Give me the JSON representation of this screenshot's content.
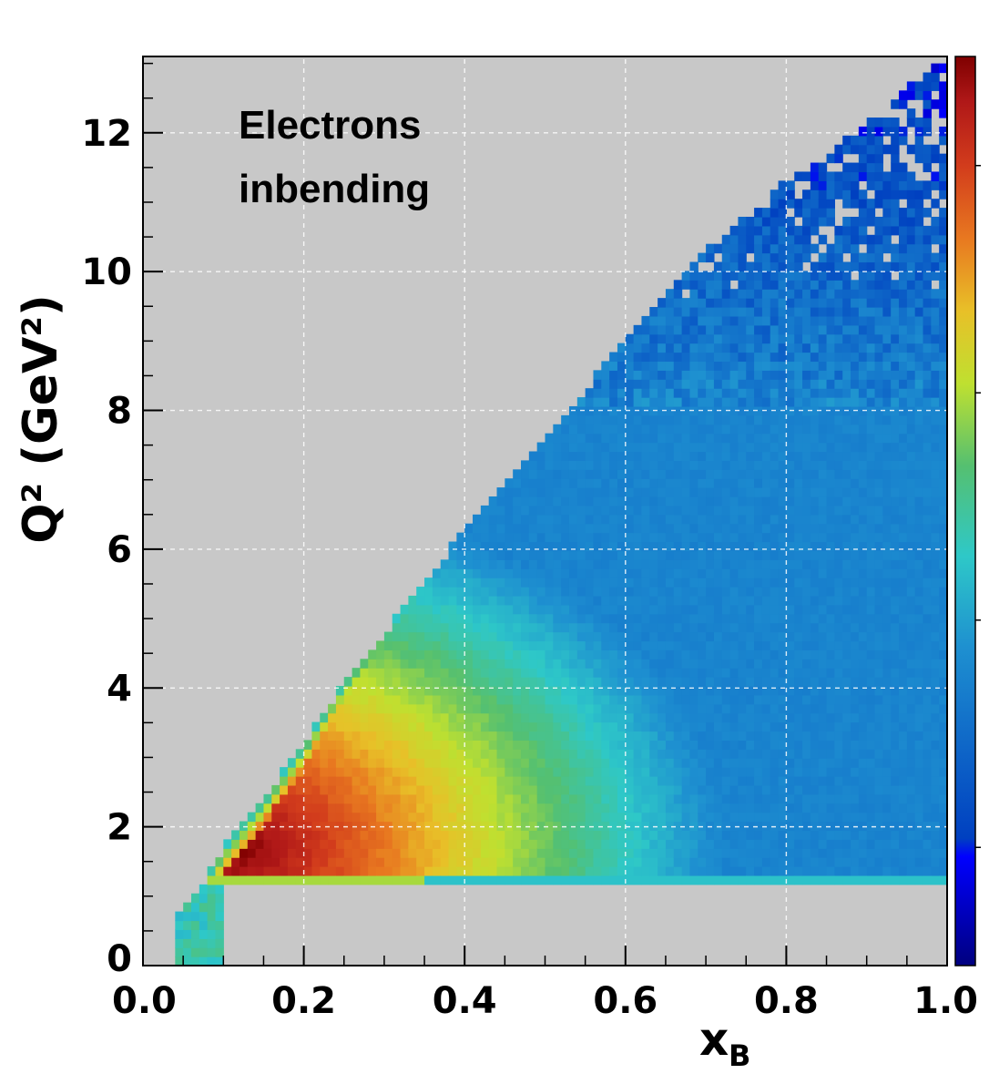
{
  "chart_data": {
    "type": "heatmap",
    "annotation_lines": [
      "Electrons",
      "inbending"
    ],
    "xlabel_main": "x",
    "xlabel_sub": "B",
    "ylabel": "Q² (GeV²)",
    "xlim": [
      0.0,
      1.0
    ],
    "ylim": [
      0,
      13.1
    ],
    "x_ticks": [
      "0.0",
      "0.2",
      "0.4",
      "0.6",
      "0.8",
      "1.0"
    ],
    "y_ticks": [
      "0",
      "2",
      "4",
      "6",
      "8",
      "10",
      "12"
    ],
    "x_tick_values": [
      0.0,
      0.2,
      0.4,
      0.6,
      0.8,
      1.0
    ],
    "y_tick_values": [
      0,
      2,
      4,
      6,
      8,
      10,
      12
    ],
    "grid": true,
    "colorscale": "jet",
    "colorbar_labels": [],
    "background_color": "#c8c8c8",
    "region": {
      "upper_boundary": [
        [
          0.05,
          0.75
        ],
        [
          0.1,
          1.7
        ],
        [
          0.15,
          2.4
        ],
        [
          0.2,
          3.2
        ],
        [
          0.25,
          4.1
        ],
        [
          0.3,
          4.8
        ],
        [
          0.35,
          5.5
        ],
        [
          0.4,
          6.3
        ],
        [
          0.45,
          6.9
        ],
        [
          0.5,
          7.6
        ],
        [
          0.55,
          8.3
        ],
        [
          0.6,
          9.1
        ],
        [
          0.65,
          9.7
        ],
        [
          0.7,
          10.3
        ],
        [
          0.75,
          10.8
        ],
        [
          0.8,
          11.3
        ],
        [
          0.85,
          11.7
        ],
        [
          0.9,
          12.1
        ],
        [
          0.95,
          12.7
        ],
        [
          1.0,
          13.1
        ]
      ],
      "lower_cutoff": 1.2,
      "peak": [
        0.12,
        1.7
      ]
    }
  }
}
